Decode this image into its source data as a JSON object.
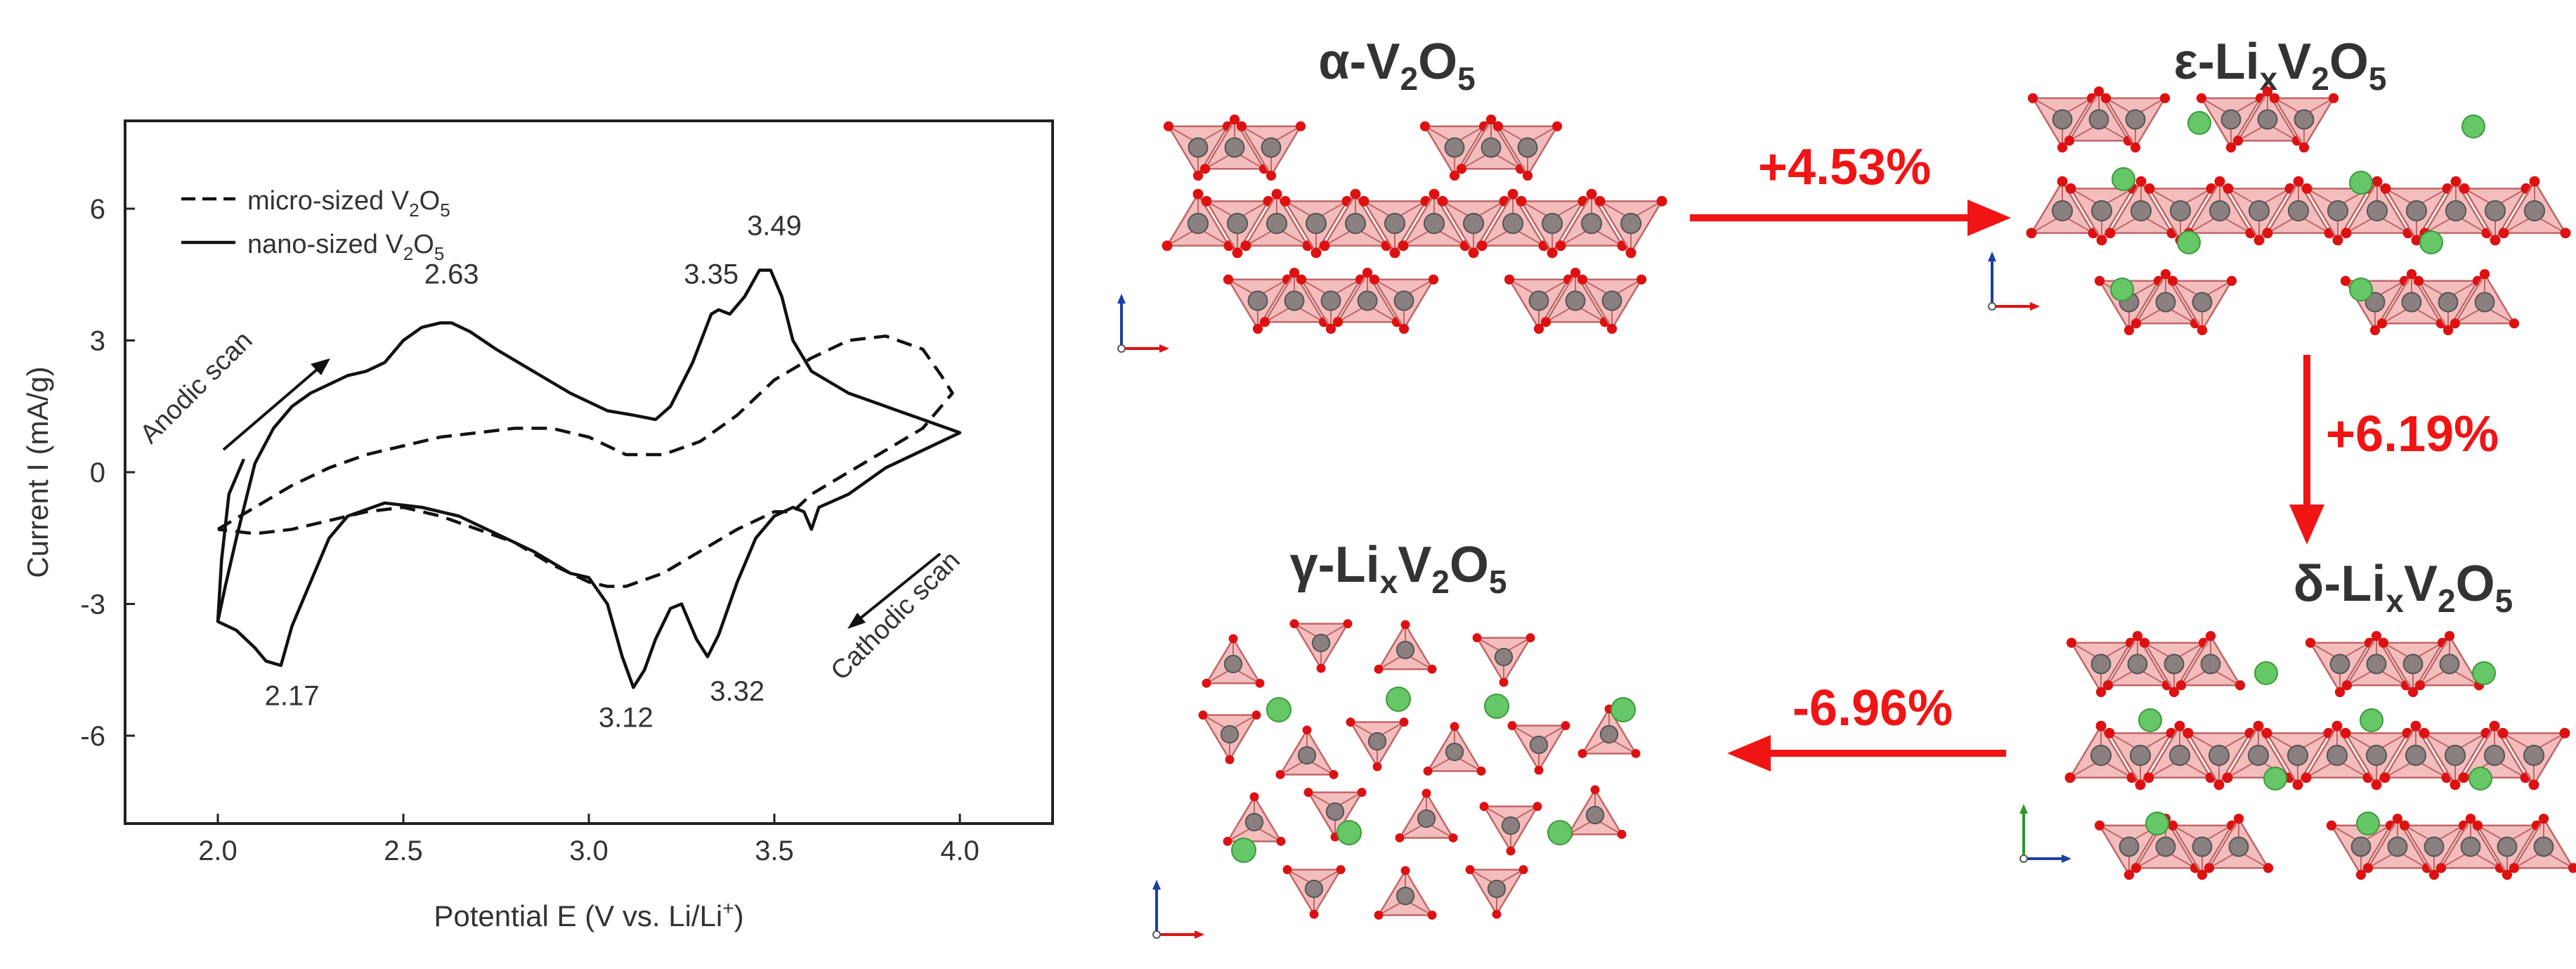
{
  "chart_data": {
    "type": "line",
    "xlabel": "Potential E (V vs. Li/Li",
    "xlabel_sup": "+",
    "xlabel_close": ")",
    "ylabel": "Current I (mA/g)",
    "xlim": [
      1.75,
      4.25
    ],
    "ylim": [
      -8.0,
      8.0
    ],
    "x_ticks": [
      2.0,
      2.5,
      3.0,
      3.5,
      4.0
    ],
    "x_tick_labels": [
      "2.0",
      "2.5",
      "3.0",
      "3.5",
      "4.0"
    ],
    "y_ticks": [
      6,
      3,
      0,
      -3,
      -6
    ],
    "y_tick_labels": [
      "6",
      "3",
      "0",
      "-3",
      "-6"
    ],
    "legend_position": "top-left",
    "legend": [
      {
        "style": "dashed",
        "text": "micro-sized V",
        "sub1": "2",
        "mid": "O",
        "sub2": "5"
      },
      {
        "style": "solid",
        "text": "nano-sized V",
        "sub1": "2",
        "mid": "O",
        "sub2": "5"
      }
    ],
    "series": [
      {
        "style": "solid",
        "x": [
          2.0,
          2.02,
          2.05,
          2.1,
          2.15,
          2.2,
          2.25,
          2.3,
          2.35,
          2.4,
          2.45,
          2.5,
          2.55,
          2.6,
          2.63,
          2.68,
          2.75,
          2.85,
          2.95,
          3.05,
          3.12,
          3.18,
          3.22,
          3.28,
          3.33,
          3.35,
          3.38,
          3.42,
          3.46,
          3.49,
          3.52,
          3.55,
          3.6,
          3.7,
          3.8,
          3.9,
          4.0,
          3.9,
          3.8,
          3.7,
          3.62,
          3.6,
          3.58,
          3.55,
          3.5,
          3.45,
          3.4,
          3.35,
          3.32,
          3.29,
          3.25,
          3.22,
          3.18,
          3.15,
          3.12,
          3.09,
          3.05,
          3.0,
          2.95,
          2.85,
          2.75,
          2.65,
          2.55,
          2.45,
          2.35,
          2.3,
          2.25,
          2.2,
          2.17,
          2.13,
          2.1,
          2.05,
          2.0,
          2.01,
          2.03,
          2.07
        ],
        "y": [
          -3.4,
          -2.6,
          -1.5,
          0.2,
          1.0,
          1.5,
          1.8,
          2.0,
          2.2,
          2.3,
          2.5,
          3.0,
          3.3,
          3.4,
          3.4,
          3.2,
          2.8,
          2.3,
          1.8,
          1.4,
          1.3,
          1.2,
          1.5,
          2.5,
          3.6,
          3.7,
          3.6,
          4.0,
          4.6,
          4.6,
          4.0,
          3.0,
          2.3,
          1.8,
          1.5,
          1.2,
          0.9,
          0.5,
          0.1,
          -0.5,
          -0.8,
          -1.3,
          -0.9,
          -0.8,
          -1.0,
          -1.5,
          -2.5,
          -3.7,
          -4.2,
          -3.8,
          -3.0,
          -3.1,
          -3.8,
          -4.5,
          -4.9,
          -4.2,
          -3.0,
          -2.4,
          -2.3,
          -1.8,
          -1.4,
          -1.0,
          -0.8,
          -0.7,
          -1.0,
          -1.5,
          -2.5,
          -3.5,
          -4.4,
          -4.3,
          -4.0,
          -3.6,
          -3.4,
          -2.0,
          -0.5,
          0.3
        ]
      },
      {
        "style": "dashed",
        "x": [
          2.0,
          2.1,
          2.2,
          2.3,
          2.4,
          2.5,
          2.6,
          2.7,
          2.8,
          2.9,
          2.95,
          3.0,
          3.05,
          3.1,
          3.2,
          3.3,
          3.4,
          3.5,
          3.6,
          3.7,
          3.8,
          3.9,
          3.95,
          3.98,
          3.9,
          3.8,
          3.7,
          3.6,
          3.55,
          3.5,
          3.4,
          3.3,
          3.2,
          3.1,
          3.05,
          3.0,
          2.9,
          2.8,
          2.7,
          2.6,
          2.5,
          2.4,
          2.3,
          2.2,
          2.1,
          2.0
        ],
        "y": [
          -1.3,
          -0.8,
          -0.3,
          0.1,
          0.4,
          0.6,
          0.8,
          0.9,
          1.0,
          1.0,
          0.9,
          0.8,
          0.6,
          0.4,
          0.4,
          0.7,
          1.3,
          2.1,
          2.6,
          3.0,
          3.1,
          2.8,
          2.2,
          1.8,
          1.0,
          0.5,
          0.0,
          -0.5,
          -0.9,
          -0.9,
          -1.3,
          -1.8,
          -2.3,
          -2.6,
          -2.6,
          -2.5,
          -2.1,
          -1.6,
          -1.3,
          -1.0,
          -0.8,
          -0.9,
          -1.1,
          -1.3,
          -1.4,
          -1.3
        ]
      }
    ],
    "annotations": [
      {
        "text": "2.63",
        "x": 2.63,
        "y": 4.3
      },
      {
        "text": "3.35",
        "x": 3.33,
        "y": 4.3
      },
      {
        "text": "3.49",
        "x": 3.5,
        "y": 5.4
      },
      {
        "text": "2.17",
        "x": 2.2,
        "y": -5.3
      },
      {
        "text": "3.12",
        "x": 3.1,
        "y": -5.8
      },
      {
        "text": "3.32",
        "x": 3.4,
        "y": -5.2
      }
    ],
    "scan_labels": {
      "anodic": "Anodic scan",
      "cathodic": "Cathodic scan"
    }
  },
  "diagram": {
    "phases": [
      {
        "prefix": "α-V",
        "s1": "2",
        "mid": "O",
        "s2": "5"
      },
      {
        "prefix": "ε-Li",
        "sx": "x",
        "v": "V",
        "s1": "2",
        "mid": "O",
        "s2": "5"
      },
      {
        "prefix": "δ-Li",
        "sx": "x",
        "v": "V",
        "s1": "2",
        "mid": "O",
        "s2": "5"
      },
      {
        "prefix": "γ-Li",
        "sx": "x",
        "v": "V",
        "s1": "2",
        "mid": "O",
        "s2": "5"
      }
    ],
    "transitions": [
      "+4.53%",
      "+6.19%",
      "-6.96%"
    ],
    "colors": {
      "arrow": "#f01414",
      "polyhedron_fill": "#f2b2b2",
      "polyhedron_edge": "#c06666",
      "oxygen": "#dd1111",
      "vanadium": "#8a8080",
      "lithium": "#66c766"
    }
  }
}
